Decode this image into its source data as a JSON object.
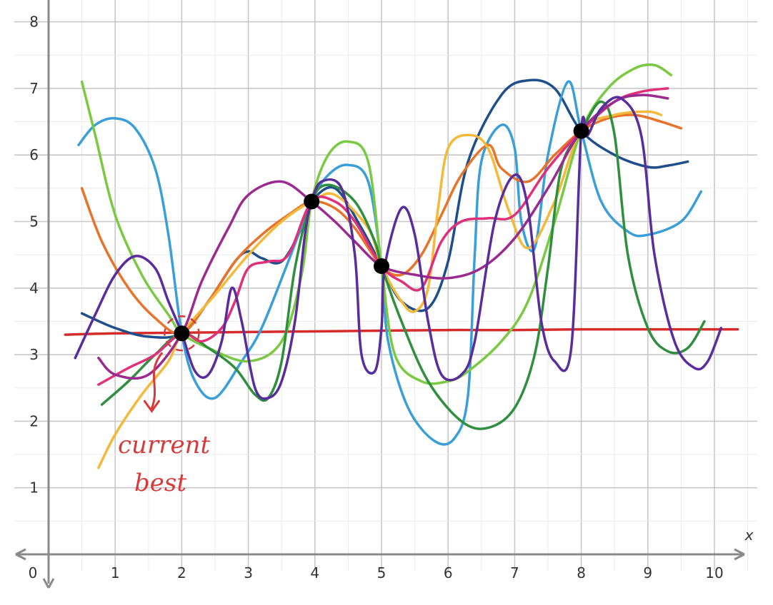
{
  "chart_data": {
    "type": "line",
    "title": "",
    "xlabel": "x",
    "ylabel": "",
    "xlim": [
      0,
      10.5
    ],
    "ylim": [
      0,
      8.3
    ],
    "grid": true,
    "x_ticks": [
      "0",
      "1",
      "2",
      "3",
      "4",
      "5",
      "6",
      "7",
      "8",
      "9",
      "10"
    ],
    "y_ticks": [
      "1",
      "2",
      "3",
      "4",
      "5",
      "6",
      "7",
      "8"
    ],
    "observations": [
      {
        "x": 2.0,
        "y": 3.32
      },
      {
        "x": 3.95,
        "y": 5.3
      },
      {
        "x": 5.0,
        "y": 4.33
      },
      {
        "x": 8.0,
        "y": 6.36
      }
    ],
    "current_best": {
      "x": 2.0,
      "y": 3.32,
      "label": "current best"
    },
    "series": [
      {
        "color": "#d62b2b",
        "width": 3.5,
        "points": [
          [
            0.25,
            3.3
          ],
          [
            1,
            3.32
          ],
          [
            2,
            3.33
          ],
          [
            3,
            3.34
          ],
          [
            4,
            3.35
          ],
          [
            5,
            3.36
          ],
          [
            6,
            3.37
          ],
          [
            7,
            3.37
          ],
          [
            8,
            3.38
          ],
          [
            9,
            3.38
          ],
          [
            10,
            3.38
          ],
          [
            10.35,
            3.38
          ]
        ]
      },
      {
        "color": "#1f4f8b",
        "width": 3.5,
        "points": [
          [
            0.5,
            3.62
          ],
          [
            1,
            3.4
          ],
          [
            1.5,
            3.27
          ],
          [
            2,
            3.32
          ],
          [
            2.4,
            3.8
          ],
          [
            2.8,
            4.4
          ],
          [
            3,
            4.55
          ],
          [
            3.2,
            4.45
          ],
          [
            3.5,
            4.4
          ],
          [
            3.8,
            4.9
          ],
          [
            3.95,
            5.3
          ],
          [
            4.3,
            5.5
          ],
          [
            4.7,
            4.9
          ],
          [
            5,
            4.33
          ],
          [
            5.3,
            3.8
          ],
          [
            5.7,
            3.7
          ],
          [
            6,
            4.4
          ],
          [
            6.3,
            5.9
          ],
          [
            6.8,
            6.9
          ],
          [
            7.2,
            7.12
          ],
          [
            7.6,
            7.0
          ],
          [
            8,
            6.36
          ],
          [
            8.5,
            6.0
          ],
          [
            9,
            5.82
          ],
          [
            9.3,
            5.84
          ],
          [
            9.6,
            5.9
          ]
        ]
      },
      {
        "color": "#3a9fd8",
        "width": 3.5,
        "points": [
          [
            0.45,
            6.15
          ],
          [
            0.7,
            6.45
          ],
          [
            1,
            6.55
          ],
          [
            1.3,
            6.4
          ],
          [
            1.6,
            5.8
          ],
          [
            1.8,
            4.8
          ],
          [
            2,
            3.32
          ],
          [
            2.2,
            2.6
          ],
          [
            2.5,
            2.35
          ],
          [
            2.9,
            2.9
          ],
          [
            3.2,
            3.4
          ],
          [
            3.6,
            4.4
          ],
          [
            3.95,
            5.3
          ],
          [
            4.2,
            5.7
          ],
          [
            4.5,
            5.85
          ],
          [
            4.8,
            5.6
          ],
          [
            5,
            4.33
          ],
          [
            5.1,
            3.2
          ],
          [
            5.4,
            2.2
          ],
          [
            5.8,
            1.7
          ],
          [
            6.1,
            1.75
          ],
          [
            6.3,
            2.4
          ],
          [
            6.4,
            4.5
          ],
          [
            6.5,
            5.9
          ],
          [
            6.8,
            6.45
          ],
          [
            7,
            6.1
          ],
          [
            7.1,
            5.0
          ],
          [
            7.3,
            4.6
          ],
          [
            7.5,
            6.0
          ],
          [
            7.8,
            7.1
          ],
          [
            8,
            6.36
          ],
          [
            8.3,
            5.3
          ],
          [
            8.7,
            4.85
          ],
          [
            9,
            4.8
          ],
          [
            9.5,
            5.0
          ],
          [
            9.8,
            5.45
          ]
        ]
      },
      {
        "color": "#e8742a",
        "width": 3.5,
        "points": [
          [
            0.5,
            5.5
          ],
          [
            0.8,
            4.7
          ],
          [
            1.2,
            4.0
          ],
          [
            1.6,
            3.55
          ],
          [
            2,
            3.32
          ],
          [
            2.4,
            3.8
          ],
          [
            2.8,
            4.4
          ],
          [
            3.2,
            4.8
          ],
          [
            3.6,
            5.1
          ],
          [
            3.95,
            5.3
          ],
          [
            4.3,
            5.2
          ],
          [
            4.6,
            4.9
          ],
          [
            5,
            4.33
          ],
          [
            5.3,
            4.2
          ],
          [
            5.6,
            4.5
          ],
          [
            5.9,
            5.1
          ],
          [
            6.2,
            5.7
          ],
          [
            6.6,
            6.15
          ],
          [
            6.8,
            5.8
          ],
          [
            7.2,
            5.6
          ],
          [
            7.6,
            6.0
          ],
          [
            8,
            6.36
          ],
          [
            8.4,
            6.55
          ],
          [
            8.8,
            6.6
          ],
          [
            9.2,
            6.5
          ],
          [
            9.5,
            6.4
          ]
        ]
      },
      {
        "color": "#f4b93a",
        "width": 3.5,
        "points": [
          [
            0.75,
            1.3
          ],
          [
            1,
            1.8
          ],
          [
            1.4,
            2.4
          ],
          [
            1.8,
            2.9
          ],
          [
            2,
            3.32
          ],
          [
            2.5,
            3.9
          ],
          [
            3,
            4.5
          ],
          [
            3.5,
            5.0
          ],
          [
            3.95,
            5.3
          ],
          [
            4.3,
            5.4
          ],
          [
            4.8,
            4.9
          ],
          [
            5,
            4.33
          ],
          [
            5.3,
            3.8
          ],
          [
            5.5,
            3.65
          ],
          [
            5.7,
            4.0
          ],
          [
            5.85,
            5.2
          ],
          [
            6,
            6.1
          ],
          [
            6.3,
            6.3
          ],
          [
            6.6,
            6.1
          ],
          [
            6.9,
            5.2
          ],
          [
            7.2,
            4.6
          ],
          [
            7.6,
            5.3
          ],
          [
            8,
            6.36
          ],
          [
            8.5,
            6.6
          ],
          [
            9,
            6.65
          ],
          [
            9.2,
            6.6
          ]
        ]
      },
      {
        "color": "#7ac943",
        "width": 3.5,
        "points": [
          [
            0.5,
            7.1
          ],
          [
            0.7,
            6.3
          ],
          [
            1,
            5.1
          ],
          [
            1.4,
            4.2
          ],
          [
            1.8,
            3.6
          ],
          [
            2,
            3.32
          ],
          [
            2.4,
            3.1
          ],
          [
            3,
            2.9
          ],
          [
            3.5,
            3.2
          ],
          [
            3.8,
            4.2
          ],
          [
            3.95,
            5.3
          ],
          [
            4.2,
            6.0
          ],
          [
            4.5,
            6.2
          ],
          [
            4.8,
            5.9
          ],
          [
            5,
            4.33
          ],
          [
            5.2,
            3.0
          ],
          [
            5.6,
            2.6
          ],
          [
            6,
            2.6
          ],
          [
            6.3,
            2.75
          ],
          [
            6.8,
            3.2
          ],
          [
            7.2,
            3.8
          ],
          [
            7.6,
            5.0
          ],
          [
            8,
            6.36
          ],
          [
            8.4,
            7.0
          ],
          [
            8.8,
            7.3
          ],
          [
            9.1,
            7.35
          ],
          [
            9.35,
            7.2
          ]
        ]
      },
      {
        "color": "#2f8f3e",
        "width": 3.5,
        "points": [
          [
            0.8,
            2.25
          ],
          [
            1.2,
            2.6
          ],
          [
            1.6,
            3.0
          ],
          [
            2,
            3.32
          ],
          [
            2.4,
            3.1
          ],
          [
            2.8,
            2.8
          ],
          [
            3.1,
            2.4
          ],
          [
            3.3,
            2.35
          ],
          [
            3.5,
            2.9
          ],
          [
            3.7,
            4.3
          ],
          [
            3.95,
            5.3
          ],
          [
            4.2,
            5.55
          ],
          [
            4.6,
            5.3
          ],
          [
            4.9,
            4.7
          ],
          [
            5,
            4.33
          ],
          [
            5.3,
            3.5
          ],
          [
            5.7,
            2.6
          ],
          [
            6.2,
            2.0
          ],
          [
            6.6,
            1.9
          ],
          [
            7,
            2.2
          ],
          [
            7.3,
            3.0
          ],
          [
            7.5,
            4.3
          ],
          [
            7.7,
            5.8
          ],
          [
            8,
            6.36
          ],
          [
            8.3,
            6.8
          ],
          [
            8.5,
            6.3
          ],
          [
            8.7,
            4.5
          ],
          [
            9,
            3.4
          ],
          [
            9.3,
            3.05
          ],
          [
            9.6,
            3.1
          ],
          [
            9.85,
            3.5
          ]
        ]
      },
      {
        "color": "#e0307a",
        "width": 3.5,
        "points": [
          [
            0.75,
            2.55
          ],
          [
            1.2,
            2.8
          ],
          [
            1.6,
            3.0
          ],
          [
            2,
            3.32
          ],
          [
            2.3,
            3.2
          ],
          [
            2.6,
            3.4
          ],
          [
            2.8,
            3.8
          ],
          [
            3,
            4.3
          ],
          [
            3.3,
            4.4
          ],
          [
            3.6,
            4.5
          ],
          [
            3.95,
            5.3
          ],
          [
            4.3,
            5.3
          ],
          [
            4.6,
            5.0
          ],
          [
            5,
            4.33
          ],
          [
            5.3,
            4.1
          ],
          [
            5.6,
            4.0
          ],
          [
            5.9,
            4.7
          ],
          [
            6.2,
            5.0
          ],
          [
            6.6,
            5.05
          ],
          [
            7,
            5.1
          ],
          [
            7.5,
            5.8
          ],
          [
            8,
            6.36
          ],
          [
            8.5,
            6.8
          ],
          [
            8.9,
            6.95
          ],
          [
            9.3,
            7.0
          ]
        ]
      },
      {
        "color": "#9b2a8e",
        "width": 3.5,
        "points": [
          [
            0.75,
            2.95
          ],
          [
            1,
            2.7
          ],
          [
            1.5,
            2.7
          ],
          [
            2,
            3.32
          ],
          [
            2.3,
            4.1
          ],
          [
            2.7,
            4.9
          ],
          [
            3,
            5.4
          ],
          [
            3.5,
            5.6
          ],
          [
            3.95,
            5.3
          ],
          [
            4.3,
            5.0
          ],
          [
            4.6,
            4.7
          ],
          [
            5,
            4.33
          ],
          [
            5.5,
            4.2
          ],
          [
            6,
            4.15
          ],
          [
            6.5,
            4.3
          ],
          [
            7,
            4.75
          ],
          [
            7.5,
            5.5
          ],
          [
            8,
            6.36
          ],
          [
            8.5,
            6.8
          ],
          [
            8.9,
            6.9
          ],
          [
            9.3,
            6.85
          ]
        ]
      },
      {
        "color": "#5a2d9c",
        "width": 3.5,
        "points": [
          [
            0.4,
            2.95
          ],
          [
            0.7,
            3.6
          ],
          [
            1,
            4.2
          ],
          [
            1.3,
            4.48
          ],
          [
            1.6,
            4.3
          ],
          [
            1.8,
            3.8
          ],
          [
            2,
            3.32
          ],
          [
            2.2,
            2.75
          ],
          [
            2.4,
            2.7
          ],
          [
            2.6,
            3.2
          ],
          [
            2.75,
            4.0
          ],
          [
            2.9,
            3.5
          ],
          [
            3.1,
            2.5
          ],
          [
            3.3,
            2.35
          ],
          [
            3.5,
            2.6
          ],
          [
            3.7,
            3.5
          ],
          [
            3.85,
            4.8
          ],
          [
            3.95,
            5.3
          ],
          [
            4.1,
            5.6
          ],
          [
            4.4,
            5.5
          ],
          [
            4.6,
            4.5
          ],
          [
            4.7,
            3.0
          ],
          [
            4.9,
            2.75
          ],
          [
            5,
            3.4
          ],
          [
            5.05,
            4.33
          ],
          [
            5.3,
            5.2
          ],
          [
            5.5,
            4.8
          ],
          [
            5.7,
            3.5
          ],
          [
            5.9,
            2.7
          ],
          [
            6.2,
            2.7
          ],
          [
            6.4,
            3.2
          ],
          [
            6.7,
            5.0
          ],
          [
            7,
            5.7
          ],
          [
            7.2,
            5.2
          ],
          [
            7.4,
            3.5
          ],
          [
            7.6,
            2.9
          ],
          [
            7.85,
            3.1
          ],
          [
            8,
            6.36
          ],
          [
            8.1,
            6.3
          ],
          [
            8.3,
            6.7
          ],
          [
            8.6,
            6.85
          ],
          [
            8.9,
            6.3
          ],
          [
            9.1,
            4.5
          ],
          [
            9.4,
            3.2
          ],
          [
            9.7,
            2.8
          ],
          [
            9.9,
            2.9
          ],
          [
            10.1,
            3.4
          ]
        ]
      }
    ],
    "annotations": [
      {
        "text": "current best",
        "target": [
          2.0,
          3.32
        ]
      }
    ]
  }
}
